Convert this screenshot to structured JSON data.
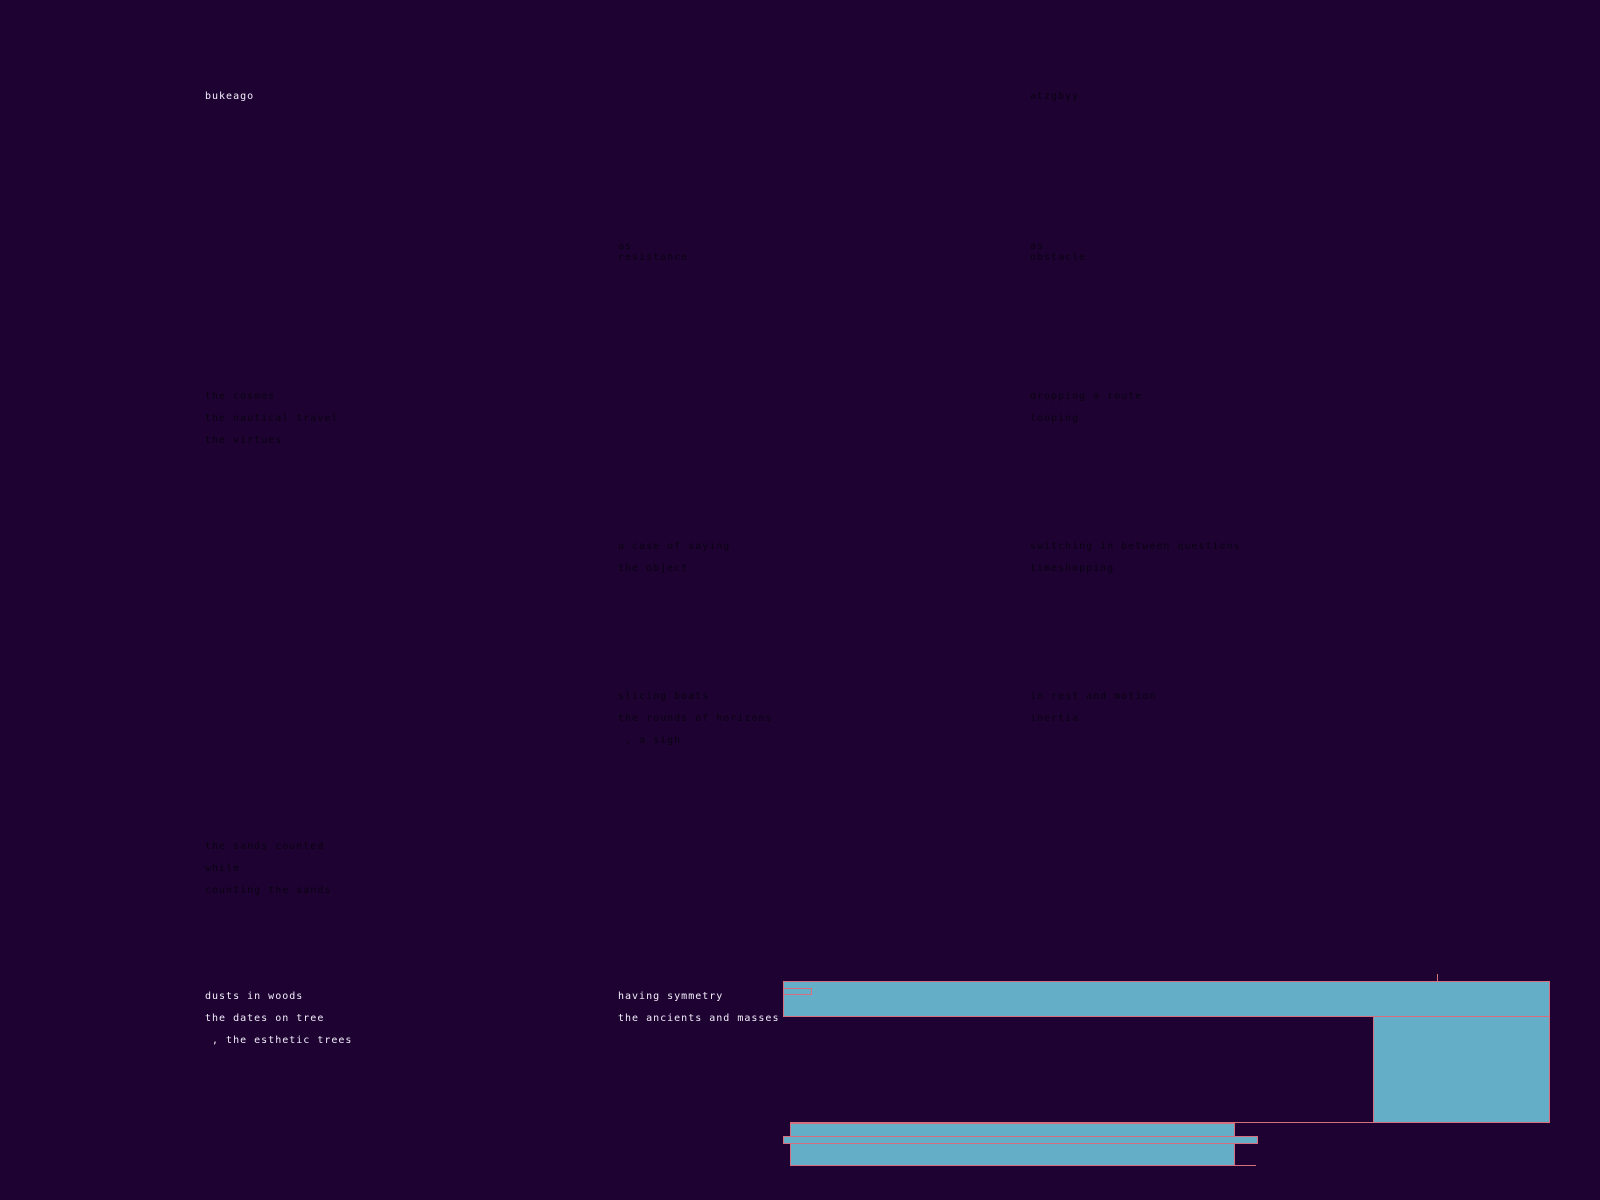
{
  "col1": {
    "title": "bukeago",
    "group2": [
      "the cosmos",
      "the nautical travel",
      "the virtues"
    ],
    "group5": [
      "the sands counted",
      "while",
      "counting the sands"
    ],
    "group6": [
      "dusts in woods",
      "the dates on tree",
      " , the esthetic trees"
    ]
  },
  "col2": {
    "group1": [
      "as",
      "resistance"
    ],
    "group3": [
      "a case of saying",
      "the object"
    ],
    "group4": [
      "slicing boats",
      "the rounds of horizons",
      " , a sigh"
    ],
    "group6": [
      "having symmetry",
      "the ancients and masses"
    ]
  },
  "col3": {
    "title": "atzgbyy",
    "group1": [
      "as",
      "obstacle"
    ],
    "group2": [
      "dropping a route",
      "looping"
    ],
    "group3": [
      "switching in between questions",
      "timeshopping"
    ],
    "group4": [
      "in rest and motion",
      "inertia"
    ]
  },
  "colors": {
    "background": "#1e0332",
    "bar_fill": "#64aec8",
    "bar_outline": "#d7707e",
    "light_text": "#f2eefa",
    "dark_text": "#0a0212"
  }
}
